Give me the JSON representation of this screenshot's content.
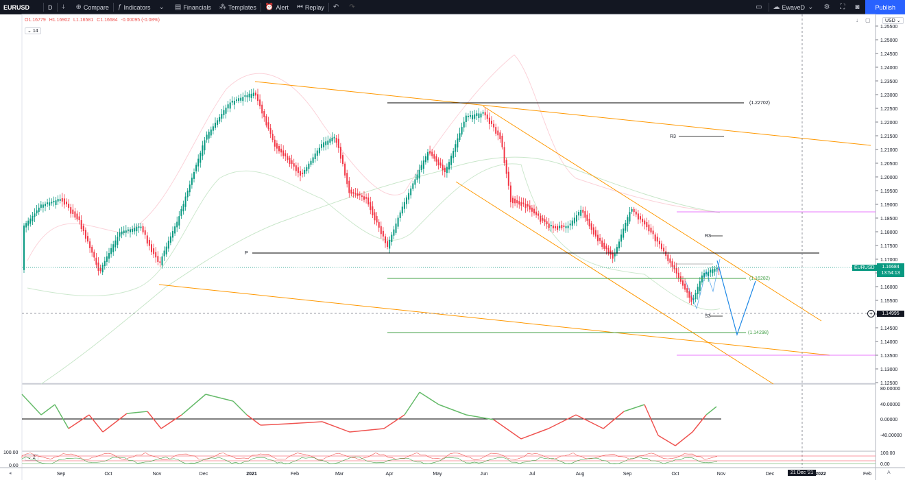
{
  "toolbar": {
    "symbol": "EURUSD",
    "interval": "D",
    "compare": "Compare",
    "indicators": "Indicators",
    "financials": "Financials",
    "templates": "Templates",
    "alert": "Alert",
    "replay": "Replay",
    "layout_name": "EwaveD",
    "publish": "Publish"
  },
  "legend": {
    "open": "O1.16779",
    "high": "H1.16902",
    "low": "L1.16581",
    "close": "C1.16684",
    "change": "-0.00095 (-0.08%)",
    "ma_period": "14",
    "osc_period": "2"
  },
  "price_axis": {
    "currency": "USD",
    "last_price": "1.16684",
    "countdown": "13:54:13",
    "crosshair_price": "1.14995",
    "ticks": [
      "1.25500",
      "1.25000",
      "1.24500",
      "1.24000",
      "1.23500",
      "1.23000",
      "1.22500",
      "1.22000",
      "1.21500",
      "1.21000",
      "1.20500",
      "1.20000",
      "1.19500",
      "1.19000",
      "1.18500",
      "1.18000",
      "1.17500",
      "1.17000",
      "1.16500",
      "1.16000",
      "1.15500",
      "1.15000",
      "1.14500",
      "1.14000",
      "1.13500",
      "1.13000",
      "1.12500"
    ]
  },
  "time_axis": {
    "labels": [
      "Sep",
      "Oct",
      "Nov",
      "Dec",
      "2021",
      "Feb",
      "Mar",
      "Apr",
      "May",
      "Jun",
      "Jul",
      "Aug",
      "Sep",
      "Oct",
      "Nov",
      "Dec",
      "2022",
      "Feb"
    ],
    "crosshair_date": "21 Dec '21"
  },
  "annotations": {
    "level_top": "(1.22702)",
    "level_mid": "(1.16282)",
    "level_low": "(1.14298)",
    "r3": "R3",
    "r3b": "R3",
    "s3": "S3",
    "pivot": "P",
    "symbol_tag": "EURUSD"
  },
  "oscillator_axis": [
    "80.00000",
    "40.00000",
    "0.00000",
    "-40.00000"
  ],
  "stoch_axis": [
    "100.00",
    "0.00"
  ],
  "stoch_right_axis": [
    "100.00",
    "0.00"
  ],
  "colors": {
    "up": "#089981",
    "down": "#f23645",
    "accent": "#2962ff",
    "trend": "#ff9800"
  }
}
